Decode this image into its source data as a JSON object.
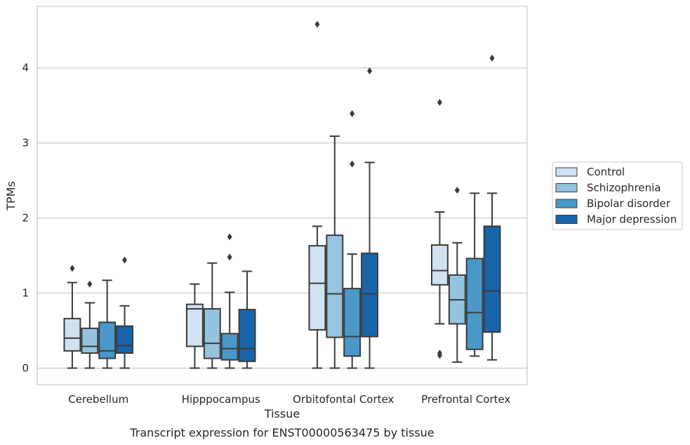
{
  "chart_data": {
    "type": "boxplot",
    "title": "",
    "caption": "Transcript expression for ENST00000563475 by tissue",
    "xlabel": "Tissue",
    "ylabel": "TPMs",
    "categories": [
      "Cerebellum",
      "Hipppocampus",
      "Orbitofontal Cortex",
      "Prefrontal Cortex"
    ],
    "ylim": [
      -0.22,
      4.82
    ],
    "yticks": [
      0,
      1,
      2,
      3,
      4
    ],
    "grid": "horizontal",
    "legend_position": "center-right",
    "series": [
      {
        "name": "Control",
        "color": "#d0e1f2",
        "boxes": [
          {
            "whisker_low": 0,
            "q1": 0.23,
            "median": 0.4,
            "q3": 0.66,
            "whisker_high": 1.14,
            "outliers": [
              1.33
            ]
          },
          {
            "whisker_low": 0,
            "q1": 0.29,
            "median": 0.79,
            "q3": 0.85,
            "whisker_high": 1.12,
            "outliers": []
          },
          {
            "whisker_low": 0,
            "q1": 0.51,
            "median": 1.13,
            "q3": 1.63,
            "whisker_high": 1.89,
            "outliers": [
              4.58
            ]
          },
          {
            "whisker_low": 0.59,
            "q1": 1.11,
            "median": 1.3,
            "q3": 1.64,
            "whisker_high": 2.08,
            "outliers": [
              0.17,
              0.2,
              3.54
            ]
          }
        ]
      },
      {
        "name": "Schizophrenia",
        "color": "#94c4df",
        "boxes": [
          {
            "whisker_low": 0,
            "q1": 0.2,
            "median": 0.29,
            "q3": 0.53,
            "whisker_high": 0.87,
            "outliers": [
              1.12
            ]
          },
          {
            "whisker_low": 0,
            "q1": 0.13,
            "median": 0.33,
            "q3": 0.79,
            "whisker_high": 1.4,
            "outliers": []
          },
          {
            "whisker_low": 0,
            "q1": 0.41,
            "median": 0.99,
            "q3": 1.77,
            "whisker_high": 3.09,
            "outliers": []
          },
          {
            "whisker_low": 0.08,
            "q1": 0.59,
            "median": 0.91,
            "q3": 1.24,
            "whisker_high": 1.67,
            "outliers": [
              2.37
            ]
          }
        ]
      },
      {
        "name": "Bipolar disorder",
        "color": "#4a98c9",
        "boxes": [
          {
            "whisker_low": 0,
            "q1": 0.13,
            "median": 0.23,
            "q3": 0.61,
            "whisker_high": 1.17,
            "outliers": []
          },
          {
            "whisker_low": 0,
            "q1": 0.11,
            "median": 0.26,
            "q3": 0.46,
            "whisker_high": 1.01,
            "outliers": [
              1.48,
              1.75
            ]
          },
          {
            "whisker_low": 0,
            "q1": 0.16,
            "median": 0.42,
            "q3": 1.06,
            "whisker_high": 1.52,
            "outliers": [
              2.72,
              3.39
            ]
          },
          {
            "whisker_low": 0.16,
            "q1": 0.25,
            "median": 0.74,
            "q3": 1.46,
            "whisker_high": 2.33,
            "outliers": []
          }
        ]
      },
      {
        "name": "Major depression",
        "color": "#1764ab",
        "boxes": [
          {
            "whisker_low": 0,
            "q1": 0.2,
            "median": 0.3,
            "q3": 0.56,
            "whisker_high": 0.83,
            "outliers": [
              1.44
            ]
          },
          {
            "whisker_low": 0,
            "q1": 0.09,
            "median": 0.26,
            "q3": 0.78,
            "whisker_high": 1.29,
            "outliers": []
          },
          {
            "whisker_low": 0,
            "q1": 0.42,
            "median": 0.99,
            "q3": 1.53,
            "whisker_high": 2.74,
            "outliers": [
              3.96
            ]
          },
          {
            "whisker_low": 0.11,
            "q1": 0.48,
            "median": 1.03,
            "q3": 1.89,
            "whisker_high": 2.33,
            "outliers": [
              4.13
            ]
          }
        ]
      }
    ]
  }
}
